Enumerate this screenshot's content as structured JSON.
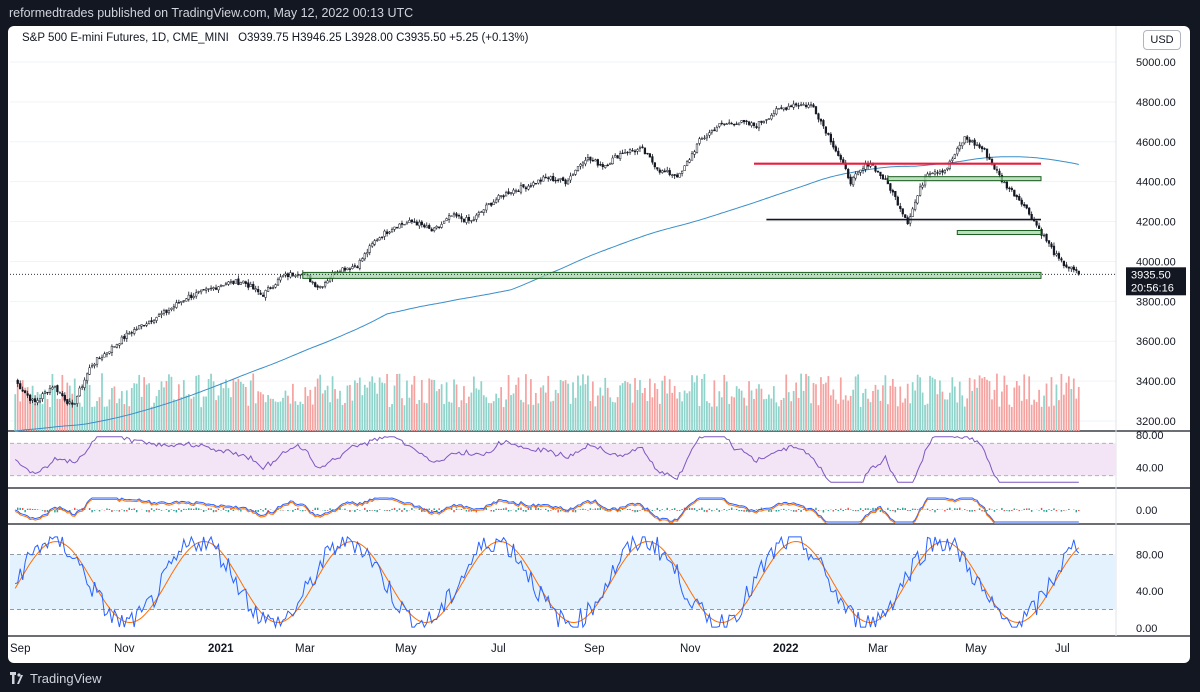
{
  "header": {
    "published_text": "reformedtrades published on TradingView.com, May 12, 2022 00:13 UTC"
  },
  "legend": {
    "symbol": "S&P 500 E-mini Futures, 1D, CME_MINI",
    "open_label": "O",
    "open": "3939.75",
    "high_label": "H",
    "high": "3946.25",
    "low_label": "L",
    "low": "3928.00",
    "close_label": "C",
    "close": "3935.50",
    "change": "+5.25 (+0.13%)"
  },
  "currency_button": "USD",
  "price_axis": {
    "ticks": [
      "5000.00",
      "4800.00",
      "4600.00",
      "4400.00",
      "4200.00",
      "4000.00",
      "3800.00",
      "3600.00",
      "3400.00",
      "3200.00"
    ]
  },
  "last_price": {
    "value": "3935.50",
    "countdown": "20:56:16"
  },
  "rsi_axis": {
    "ticks": [
      "80.00",
      "40.00"
    ]
  },
  "macd_axis": {
    "ticks": [
      "0.00"
    ]
  },
  "stoch_axis": {
    "ticks": [
      "80.00",
      "40.00",
      "0.00"
    ]
  },
  "time_axis": {
    "labels": [
      "Sep",
      "Nov",
      "2021",
      "Mar",
      "May",
      "Jul",
      "Sep",
      "Nov",
      "2022",
      "Mar",
      "May",
      "Jul"
    ]
  },
  "footer": {
    "brand": "TradingView"
  },
  "colors": {
    "up": "#26a69a",
    "down": "#ef5350",
    "sma": "#2962ff",
    "rsi": "#7e57c2",
    "resistance": "#e91e3f",
    "zone_fill": "#a5d6a7",
    "stoch_k": "#2962ff",
    "stoch_d": "#ff6d00"
  },
  "chart_data": {
    "type": "candlestick",
    "series": [
      {
        "name": "price",
        "close": [
          3400,
          3290,
          3380,
          3270,
          3480,
          3560,
          3640,
          3700,
          3750,
          3820,
          3850,
          3890,
          3900,
          3830,
          3920,
          3950,
          3870,
          3960,
          3980,
          4110,
          4180,
          4200,
          4150,
          4230,
          4200,
          4290,
          4350,
          4380,
          4420,
          4400,
          4520,
          4480,
          4550,
          4560,
          4450,
          4430,
          4600,
          4680,
          4700,
          4680,
          4750,
          4790,
          4780,
          4600,
          4400,
          4500,
          4380,
          4200,
          4450,
          4460,
          4620,
          4560,
          4400,
          4300,
          4150,
          4000,
          3935.5
        ]
      },
      {
        "name": "volume"
      },
      {
        "name": "RSI"
      },
      {
        "name": "MACD"
      },
      {
        "name": "Stoch"
      }
    ],
    "annotations": {
      "resistance_line": 4490,
      "support_line": 4210,
      "zones": [
        [
          4405,
          4425
        ],
        [
          4140,
          4155
        ],
        [
          3915,
          3945
        ]
      ]
    },
    "ylim": [
      3150,
      5080
    ]
  }
}
